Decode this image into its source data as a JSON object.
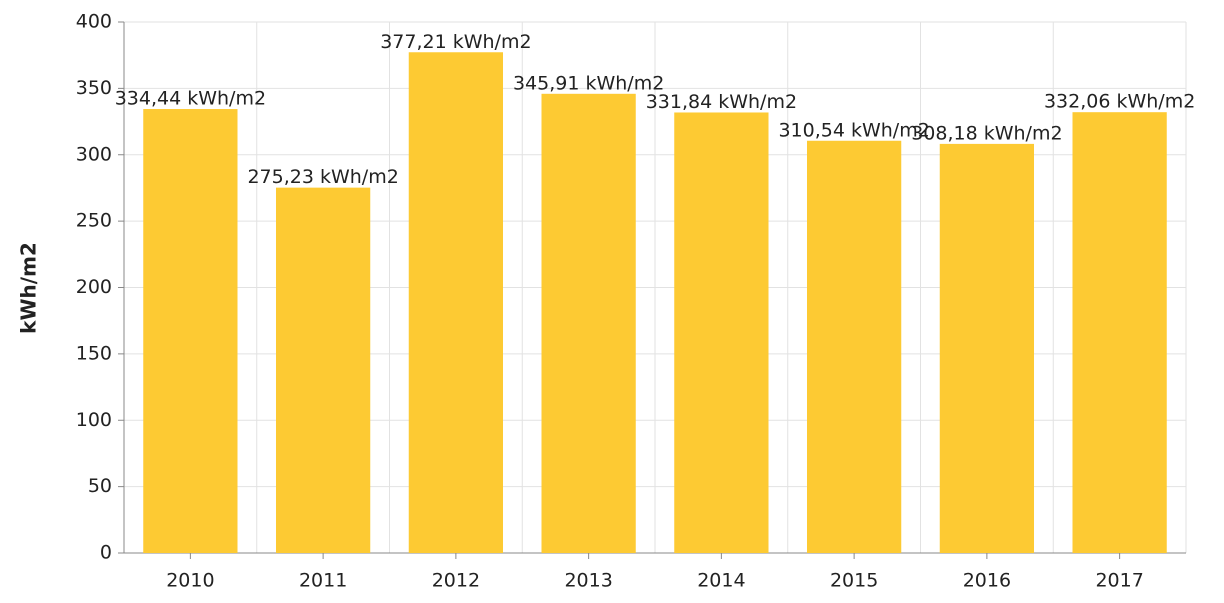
{
  "chart_data": {
    "type": "bar",
    "y_label": "kWh/m2",
    "categories": [
      "2010",
      "2011",
      "2012",
      "2013",
      "2014",
      "2015",
      "2016",
      "2017"
    ],
    "values": [
      334.44,
      275.23,
      377.21,
      345.91,
      331.84,
      310.54,
      308.18,
      332.06
    ],
    "value_labels": [
      "334,44 kWh/m2",
      "275,23 kWh/m2",
      "377,21 kWh/m2",
      "345,91 kWh/m2",
      "331,84 kWh/m2",
      "310,54 kWh/m2",
      "308,18 kWh/m2",
      "332,06 kWh/m2"
    ],
    "color": "#fdca33",
    "ylim": [
      0,
      400
    ],
    "yticks": [
      0,
      50,
      100,
      150,
      200,
      250,
      300,
      350,
      400
    ],
    "grid": true
  }
}
